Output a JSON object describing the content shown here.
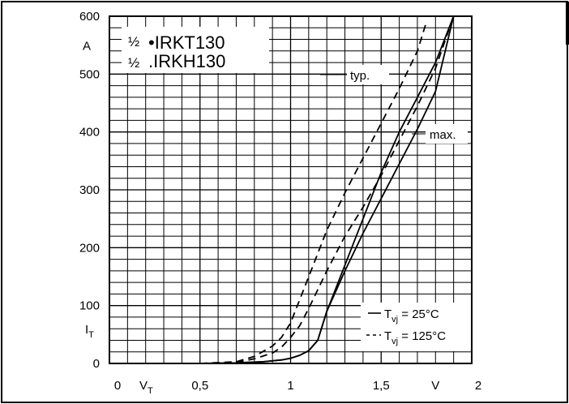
{
  "chart_data": {
    "type": "line",
    "title_lines": [
      {
        "prefix": "½",
        "text": "•IRKT130"
      },
      {
        "prefix": "½",
        "text": ".IRKH130"
      }
    ],
    "xlabel": "V",
    "x_symbol": "V",
    "x_symbol_sub": "T",
    "ylabel_unit": "A",
    "y_symbol": "I",
    "y_symbol_sub": "T",
    "xlim": [
      0,
      2.0
    ],
    "ylim": [
      0,
      600
    ],
    "x_ticks": [
      {
        "value": 0,
        "label": "0"
      },
      {
        "value": 0.5,
        "label": "0,5"
      },
      {
        "value": 1.0,
        "label": "1"
      },
      {
        "value": 1.5,
        "label": "1,5"
      },
      {
        "value": 2.0,
        "label": "2"
      }
    ],
    "y_ticks": [
      {
        "value": 0,
        "label": "0"
      },
      {
        "value": 100,
        "label": "100"
      },
      {
        "value": 200,
        "label": "200"
      },
      {
        "value": 300,
        "label": "300"
      },
      {
        "value": 400,
        "label": "400"
      },
      {
        "value": 500,
        "label": "500"
      },
      {
        "value": 600,
        "label": "600"
      }
    ],
    "grid": true,
    "curve_labels": {
      "typ": "typ.",
      "max": "max."
    },
    "legend": {
      "placement": "bottom-right",
      "entries": [
        {
          "style": "solid",
          "text_main": "T",
          "text_sub": "vj",
          "text_value": "= 25°C"
        },
        {
          "style": "dashed",
          "text_main": "T",
          "text_sub": "vj",
          "text_value": "= 125°C"
        }
      ]
    },
    "series": [
      {
        "style": "solid",
        "x": [
          0.5,
          0.7,
          0.85,
          0.95,
          1.0,
          1.05,
          1.1,
          1.15,
          1.2,
          1.3,
          1.4,
          1.5,
          1.6,
          1.7,
          1.8,
          1.85,
          1.9
        ],
        "y": [
          0,
          1,
          3,
          6,
          9,
          14,
          22,
          40,
          90,
          170,
          250,
          330,
          400,
          460,
          520,
          560,
          600
        ]
      },
      {
        "style": "solid",
        "x": [
          0.5,
          0.7,
          0.85,
          0.95,
          1.0,
          1.05,
          1.1,
          1.15,
          1.2,
          1.3,
          1.4,
          1.5,
          1.6,
          1.7,
          1.8,
          1.9
        ],
        "y": [
          0,
          1,
          3,
          6,
          9,
          14,
          22,
          40,
          90,
          160,
          225,
          285,
          345,
          405,
          470,
          600
        ]
      },
      {
        "style": "dashed",
        "x": [
          0.5,
          0.7,
          0.8,
          0.9,
          0.95,
          1.0,
          1.1,
          1.2,
          1.3,
          1.4,
          1.5,
          1.6,
          1.7,
          1.75
        ],
        "y": [
          0,
          3,
          12,
          30,
          45,
          70,
          150,
          230,
          295,
          355,
          415,
          475,
          540,
          590
        ]
      },
      {
        "style": "dashed",
        "x": [
          0.5,
          0.7,
          0.8,
          0.9,
          0.95,
          1.0,
          1.05,
          1.1,
          1.2,
          1.3,
          1.4,
          1.5,
          1.6,
          1.7,
          1.8,
          1.9
        ],
        "y": [
          0,
          2,
          8,
          18,
          28,
          45,
          65,
          95,
          160,
          220,
          270,
          325,
          385,
          445,
          510,
          600
        ]
      }
    ]
  }
}
